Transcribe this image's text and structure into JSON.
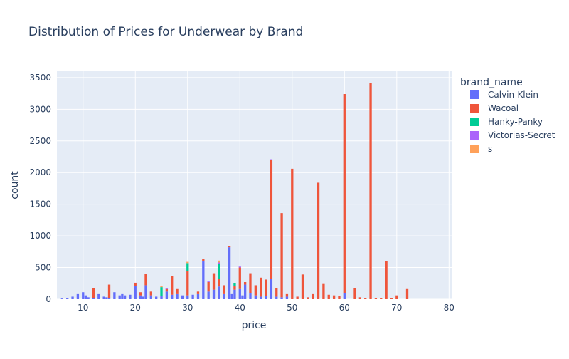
{
  "chart_data": {
    "type": "bar",
    "title": "Distribution of Prices for Underwear by Brand",
    "xlabel": "price",
    "ylabel": "count",
    "xlim": [
      5,
      80.5
    ],
    "ylim": [
      0,
      3600
    ],
    "x_ticks": [
      10,
      20,
      30,
      40,
      50,
      60,
      70,
      80
    ],
    "y_ticks": [
      0,
      500,
      1000,
      1500,
      2000,
      2500,
      3000,
      3500
    ],
    "barmode": "stack",
    "bin_width": 0.5,
    "grid": true,
    "legend_title": "brand_name",
    "legend_position": "right",
    "series": [
      {
        "name": "Calvin-Klein",
        "color": "#636efa",
        "points": [
          [
            6,
            10
          ],
          [
            7,
            20
          ],
          [
            8,
            40
          ],
          [
            9,
            80
          ],
          [
            10,
            110
          ],
          [
            10.5,
            60
          ],
          [
            11,
            30
          ],
          [
            12,
            20
          ],
          [
            13,
            80
          ],
          [
            14,
            40
          ],
          [
            14.5,
            30
          ],
          [
            15,
            20
          ],
          [
            16,
            110
          ],
          [
            17,
            60
          ],
          [
            17.5,
            80
          ],
          [
            18,
            60
          ],
          [
            19,
            70
          ],
          [
            20,
            210
          ],
          [
            21,
            60
          ],
          [
            21.5,
            40
          ],
          [
            22,
            220
          ],
          [
            23,
            60
          ],
          [
            24,
            40
          ],
          [
            25,
            50
          ],
          [
            26,
            120
          ],
          [
            27,
            70
          ],
          [
            28,
            80
          ],
          [
            29,
            60
          ],
          [
            30,
            60
          ],
          [
            31,
            70
          ],
          [
            32,
            80
          ],
          [
            33,
            600
          ],
          [
            34,
            120
          ],
          [
            35,
            150
          ],
          [
            36,
            200
          ],
          [
            37,
            80
          ],
          [
            38,
            820
          ],
          [
            38.5,
            80
          ],
          [
            39,
            150
          ],
          [
            40,
            160
          ],
          [
            40.5,
            60
          ],
          [
            41,
            230
          ],
          [
            42,
            90
          ],
          [
            43,
            60
          ],
          [
            44,
            40
          ],
          [
            45,
            50
          ],
          [
            46,
            320
          ],
          [
            47,
            40
          ],
          [
            48,
            30
          ],
          [
            49,
            40
          ],
          [
            60,
            90
          ]
        ]
      },
      {
        "name": "Wacoal",
        "color": "#ef553b",
        "points": [
          [
            12,
            160
          ],
          [
            15,
            210
          ],
          [
            20,
            40
          ],
          [
            21,
            50
          ],
          [
            22,
            180
          ],
          [
            23,
            60
          ],
          [
            26,
            40
          ],
          [
            27,
            300
          ],
          [
            28,
            80
          ],
          [
            30,
            380
          ],
          [
            32,
            40
          ],
          [
            33,
            40
          ],
          [
            34,
            150
          ],
          [
            35,
            260
          ],
          [
            36,
            120
          ],
          [
            37,
            140
          ],
          [
            38,
            20
          ],
          [
            39,
            60
          ],
          [
            40,
            340
          ],
          [
            41,
            40
          ],
          [
            42,
            320
          ],
          [
            43,
            160
          ],
          [
            44,
            300
          ],
          [
            45,
            260
          ],
          [
            46,
            1880
          ],
          [
            47,
            140
          ],
          [
            48,
            1330
          ],
          [
            49,
            40
          ],
          [
            50,
            2060
          ],
          [
            51,
            40
          ],
          [
            52,
            390
          ],
          [
            53,
            30
          ],
          [
            54,
            80
          ],
          [
            55,
            1840
          ],
          [
            56,
            240
          ],
          [
            57,
            70
          ],
          [
            58,
            60
          ],
          [
            59,
            50
          ],
          [
            60,
            3150
          ],
          [
            62,
            170
          ],
          [
            63,
            30
          ],
          [
            64,
            20
          ],
          [
            65,
            3420
          ],
          [
            66,
            20
          ],
          [
            67,
            20
          ],
          [
            68,
            600
          ],
          [
            69,
            20
          ],
          [
            70,
            60
          ],
          [
            72,
            160
          ]
        ]
      },
      {
        "name": "Hanky-Panky",
        "color": "#00cc96",
        "points": [
          [
            25,
            140
          ],
          [
            30,
            130
          ],
          [
            36,
            240
          ],
          [
            39,
            40
          ]
        ]
      },
      {
        "name": "Victorias-Secret",
        "color": "#ab63fa",
        "points": [
          [
            20,
            10
          ],
          [
            26,
            15
          ],
          [
            34,
            10
          ],
          [
            36,
            20
          ],
          [
            40,
            15
          ],
          [
            46,
            10
          ]
        ]
      },
      {
        "name": "s",
        "color": "#ffa15a",
        "points": [
          [
            25,
            20
          ],
          [
            30,
            20
          ],
          [
            36,
            30
          ]
        ]
      }
    ]
  }
}
